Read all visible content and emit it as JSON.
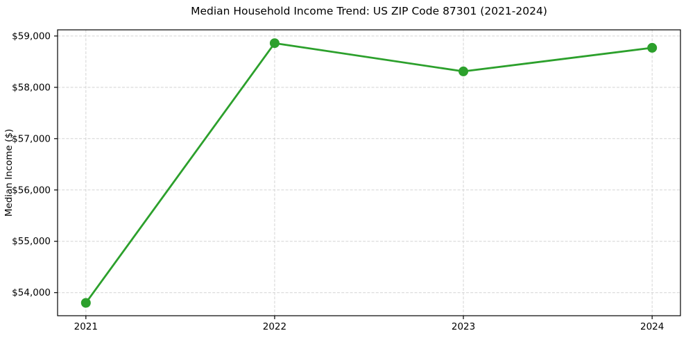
{
  "chart_data": {
    "type": "line",
    "title": "Median Household Income Trend: US ZIP Code 87301 (2021-2024)",
    "xlabel": "",
    "ylabel": "Median Income ($)",
    "x": [
      2021,
      2022,
      2023,
      2024
    ],
    "series": [
      {
        "name": "Median household income",
        "values": [
          53800,
          58860,
          58310,
          58770
        ],
        "color": "#2ca02c",
        "marker": "circle"
      }
    ],
    "xlim": [
      2020.85,
      2024.15
    ],
    "ylim": [
      53550,
      59120
    ],
    "xticks": [
      2021,
      2022,
      2023,
      2024
    ],
    "xtick_labels": [
      "2021",
      "2022",
      "2023",
      "2024"
    ],
    "yticks": [
      54000,
      55000,
      56000,
      57000,
      58000,
      59000
    ],
    "ytick_labels": [
      "$54,000",
      "$55,000",
      "$56,000",
      "$57,000",
      "$58,000",
      "$59,000"
    ],
    "grid": true,
    "grid_style": "dashed",
    "legend": "none",
    "colors": {
      "line": "#2ca02c",
      "grid": "#d4d4d4",
      "spine": "#000000",
      "text": "#000000",
      "background": "#ffffff"
    }
  }
}
